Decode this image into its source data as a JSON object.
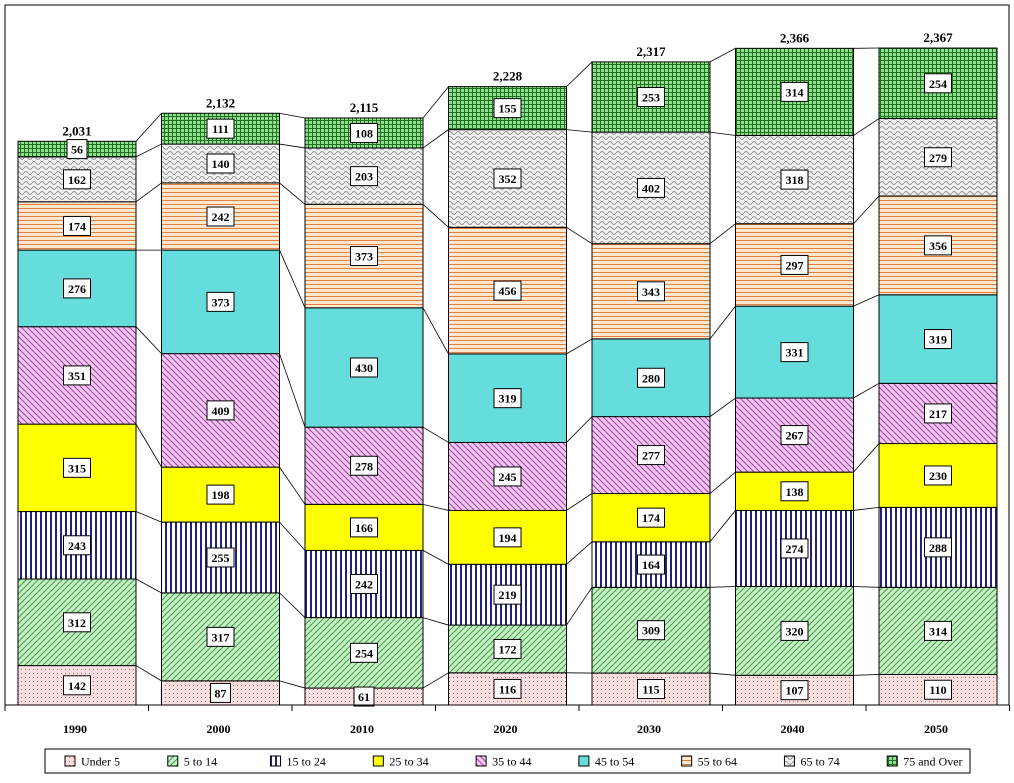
{
  "chart_data": {
    "type": "bar",
    "stacked": true,
    "categories": [
      "1990",
      "2000",
      "2010",
      "2020",
      "2030",
      "2040",
      "2050"
    ],
    "totals": [
      "2,031",
      "2,132",
      "2,115",
      "2,228",
      "2,317",
      "2,366",
      "2,367"
    ],
    "series": [
      {
        "name": "Under 5",
        "values": [
          142,
          87,
          61,
          116,
          115,
          107,
          110
        ],
        "color": "#ffe0e0",
        "pattern": "dots"
      },
      {
        "name": "5 to 14",
        "values": [
          312,
          317,
          254,
          172,
          309,
          320,
          314
        ],
        "color": "#c8f0c8",
        "pattern": "diag-up"
      },
      {
        "name": "15 to 24",
        "values": [
          243,
          255,
          242,
          219,
          164,
          274,
          288
        ],
        "color": "#ffffff",
        "pattern": "vertical"
      },
      {
        "name": "25 to 34",
        "values": [
          315,
          198,
          166,
          194,
          174,
          138,
          230
        ],
        "color": "#ffff00",
        "pattern": "solid"
      },
      {
        "name": "35 to 44",
        "values": [
          351,
          409,
          278,
          245,
          277,
          267,
          217
        ],
        "color": "#f4c8f4",
        "pattern": "diag-down"
      },
      {
        "name": "45 to 54",
        "values": [
          276,
          373,
          430,
          319,
          280,
          331,
          319
        ],
        "color": "#66dddd",
        "pattern": "solid"
      },
      {
        "name": "55 to 64",
        "values": [
          174,
          242,
          373,
          456,
          343,
          297,
          356
        ],
        "color": "#fde8d0",
        "pattern": "horizontal"
      },
      {
        "name": "65 to 74",
        "values": [
          162,
          140,
          203,
          352,
          402,
          318,
          279
        ],
        "color": "#f0f0f0",
        "pattern": "wave"
      },
      {
        "name": "75 and Over",
        "values": [
          56,
          111,
          108,
          155,
          253,
          314,
          254
        ],
        "color": "#90e090",
        "pattern": "grid"
      }
    ],
    "ylim": [
      0,
      2450
    ],
    "grid": false,
    "legend_position": "bottom",
    "title": "",
    "xlabel": "",
    "ylabel": ""
  }
}
